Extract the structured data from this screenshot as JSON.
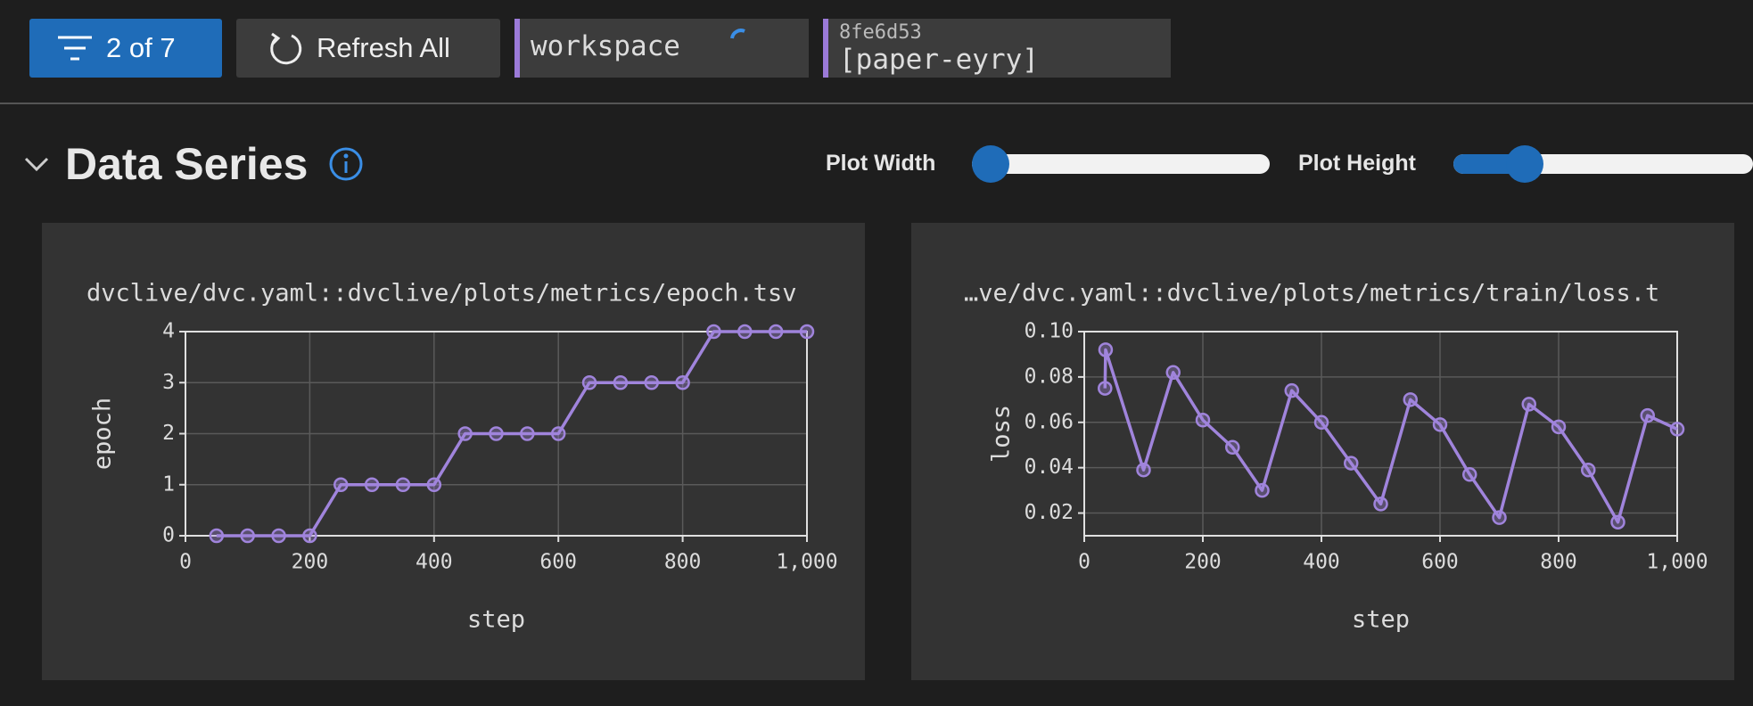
{
  "toolbar": {
    "filter_button": "2 of 7",
    "refresh_button": "Refresh All",
    "experiments": [
      {
        "label": "workspace"
      },
      {
        "sha": "8fe6d53",
        "label": "[paper-eyry]"
      }
    ]
  },
  "section": {
    "title": "Data Series",
    "plot_width_label": "Plot Width",
    "plot_height_label": "Plot Height"
  },
  "chart_data": [
    {
      "type": "line",
      "title": "dvclive/dvc.yaml::dvclive/plots/metrics/epoch.tsv",
      "x_label": "step",
      "y_label": "epoch",
      "color": "#a084dc",
      "grid": true,
      "x": [
        50,
        100,
        150,
        200,
        250,
        300,
        350,
        400,
        450,
        500,
        550,
        600,
        650,
        700,
        750,
        800,
        850,
        900,
        950,
        1000
      ],
      "values": [
        0,
        0,
        0,
        0,
        1,
        1,
        1,
        1,
        2,
        2,
        2,
        2,
        3,
        3,
        3,
        3,
        4,
        4,
        4,
        4
      ],
      "xlim": [
        0,
        1000
      ],
      "xticks": [
        0,
        200,
        400,
        600,
        800,
        {
          "value": 1000,
          "label": "1,000"
        }
      ],
      "ylim": [
        0,
        4
      ],
      "yticks": [
        0,
        1,
        2,
        3,
        4
      ]
    },
    {
      "type": "line",
      "title": "…ve/dvc.yaml::dvclive/plots/metrics/train/loss.t",
      "x_label": "step",
      "y_label": "loss",
      "color": "#a084dc",
      "grid": true,
      "x": [
        35,
        36,
        100,
        150,
        200,
        250,
        300,
        350,
        400,
        450,
        500,
        550,
        600,
        650,
        700,
        750,
        800,
        850,
        900,
        950,
        1000
      ],
      "values": [
        0.075,
        0.092,
        0.039,
        0.082,
        0.061,
        0.049,
        0.03,
        0.074,
        0.06,
        0.042,
        0.024,
        0.07,
        0.059,
        0.037,
        0.018,
        0.068,
        0.058,
        0.039,
        0.016,
        0.063,
        0.057
      ],
      "xlim": [
        0,
        1000
      ],
      "xticks": [
        0,
        200,
        400,
        600,
        800,
        {
          "value": 1000,
          "label": "1,000"
        }
      ],
      "ylim": [
        0.01,
        0.1
      ],
      "yticks": [
        0.02,
        0.04,
        0.06,
        0.08,
        {
          "value": 0.1,
          "label": "0.10"
        }
      ]
    }
  ]
}
